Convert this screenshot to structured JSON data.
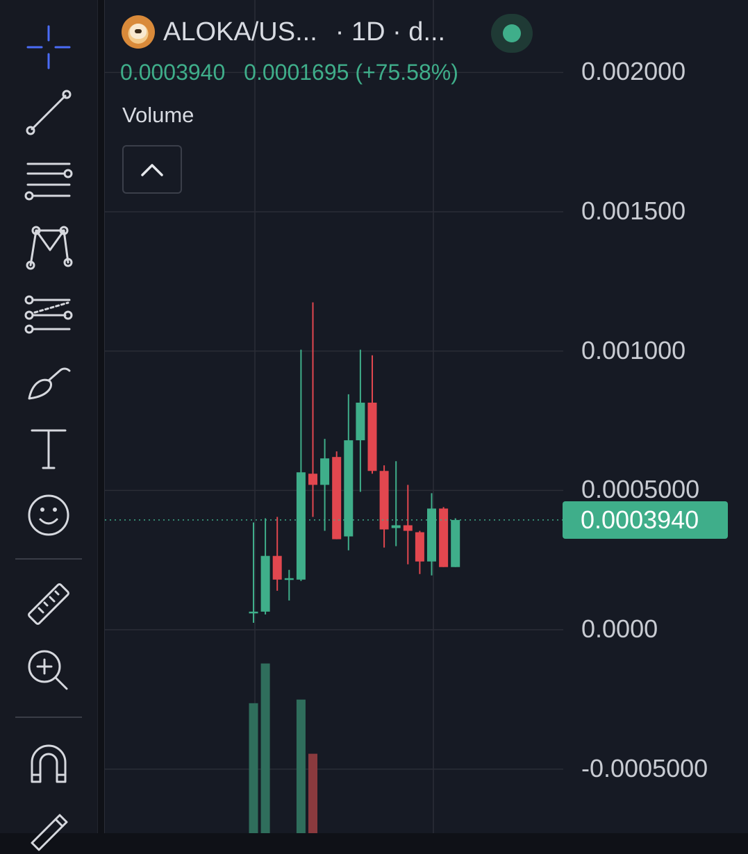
{
  "toolbar": {
    "tools": [
      {
        "name": "crosshair-icon",
        "active": true
      },
      {
        "name": "trend-line-icon"
      },
      {
        "name": "horizontal-lines-icon"
      },
      {
        "name": "pattern-icon"
      },
      {
        "name": "prediction-icon"
      },
      {
        "name": "brush-icon"
      },
      {
        "name": "text-tool-icon"
      },
      {
        "name": "emoji-icon"
      },
      {
        "name": "ruler-icon"
      },
      {
        "name": "zoom-in-icon"
      },
      {
        "name": "magnet-icon"
      },
      {
        "name": "pencil-lock-icon"
      }
    ]
  },
  "header": {
    "symbol": "ALOKA/US...",
    "interval": "· 1D · d...",
    "status": "online"
  },
  "ohlc": {
    "last": "0.0003940",
    "change": "0.0001695 (+75.58%)"
  },
  "volume_label": "Volume",
  "price_axis": {
    "labels": [
      "0.002000",
      "0.001500",
      "0.001000",
      "0.0005000",
      "0.0000",
      "-0.0005000"
    ],
    "last_price": "0.0003940"
  },
  "colors": {
    "up": "#3fae8a",
    "down": "#e2474f",
    "background": "#161a24",
    "grid": "#2a2d36"
  },
  "chart_data": {
    "type": "candlestick",
    "ylim": [
      -0.00073,
      0.00226
    ],
    "last_price": 0.000394,
    "candles": [
      {
        "o": 6.2e-05,
        "h": 0.000385,
        "l": 2.5e-05,
        "c": 6.5e-05
      },
      {
        "o": 6.5e-05,
        "h": 0.0004,
        "l": 5.5e-05,
        "c": 0.000265
      },
      {
        "o": 0.000265,
        "h": 0.000405,
        "l": 0.00014,
        "c": 0.00018
      },
      {
        "o": 0.000185,
        "h": 0.000215,
        "l": 0.000105,
        "c": 0.000185
      },
      {
        "o": 0.00018,
        "h": 0.001005,
        "l": 0.000175,
        "c": 0.000565
      },
      {
        "o": 0.00056,
        "h": 0.001175,
        "l": 0.000405,
        "c": 0.00052
      },
      {
        "o": 0.00052,
        "h": 0.000685,
        "l": 0.000355,
        "c": 0.000615
      },
      {
        "o": 0.00062,
        "h": 0.00064,
        "l": 0.000325,
        "c": 0.000325
      },
      {
        "o": 0.000335,
        "h": 0.000845,
        "l": 0.000285,
        "c": 0.00068
      },
      {
        "o": 0.00068,
        "h": 0.001005,
        "l": 0.000495,
        "c": 0.000815
      },
      {
        "o": 0.000815,
        "h": 0.000985,
        "l": 0.00056,
        "c": 0.00057
      },
      {
        "o": 0.00057,
        "h": 0.00059,
        "l": 0.000295,
        "c": 0.00036
      },
      {
        "o": 0.000365,
        "h": 0.000605,
        "l": 0.0003,
        "c": 0.000375
      },
      {
        "o": 0.000375,
        "h": 0.00052,
        "l": 0.000235,
        "c": 0.000355
      },
      {
        "o": 0.00035,
        "h": 0.000355,
        "l": 0.0002,
        "c": 0.000245
      },
      {
        "o": 0.000245,
        "h": 0.00049,
        "l": 0.000195,
        "c": 0.000435
      },
      {
        "o": 0.000435,
        "h": 0.00044,
        "l": 0.000225,
        "c": 0.000225
      },
      {
        "o": 0.000225,
        "h": 0.0004,
        "l": 0.000225,
        "c": 0.000394
      }
    ],
    "volume": [
      0.36,
      0.47,
      0,
      0,
      0.37,
      0.22,
      0,
      0,
      0,
      0,
      0,
      0,
      0,
      0,
      0,
      0,
      0,
      0
    ]
  }
}
